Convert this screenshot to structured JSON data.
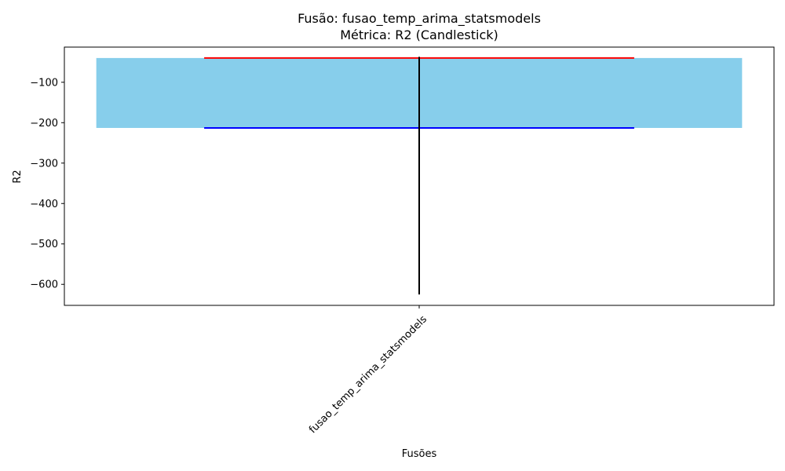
{
  "chart_data": {
    "type": "candlestick",
    "title": "Fusão: fusao_temp_arima_statsmodels",
    "subtitle": "Métrica: R2 (Candlestick)",
    "xlabel": "Fusões",
    "ylabel": "R2",
    "categories": [
      "fusao_temp_arima_statsmodels"
    ],
    "candles": [
      {
        "category": "fusao_temp_arima_statsmodels",
        "high": -37,
        "upper": -40,
        "lower": -213,
        "low": -625
      }
    ],
    "ylim": [
      -652,
      -13
    ],
    "yticks": [
      -600,
      -500,
      -400,
      -300,
      -200,
      -100
    ],
    "ytick_labels": [
      "−600",
      "−500",
      "−400",
      "−300",
      "−200",
      "−100"
    ],
    "grid": false,
    "colors": {
      "body": "#87ceeb",
      "upper_line": "#ff0000",
      "lower_line": "#0000ff",
      "wick": "#000000"
    }
  }
}
